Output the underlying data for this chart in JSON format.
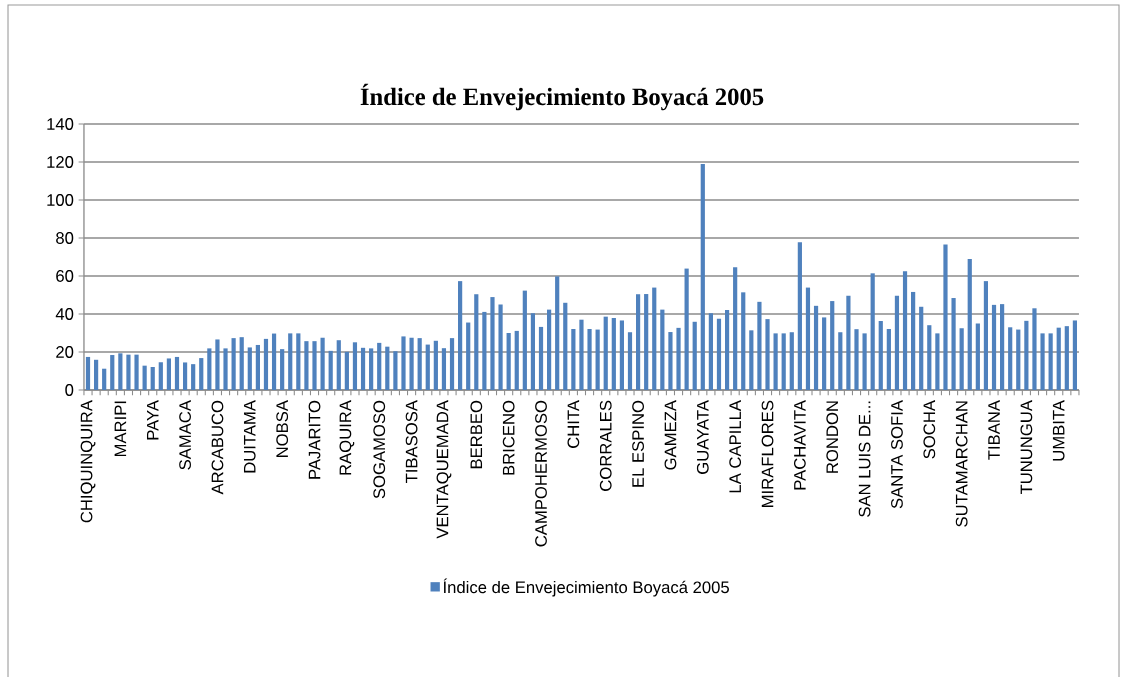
{
  "chart_data": {
    "type": "bar",
    "title": "Índice de Envejecimiento Boyacá 2005",
    "categories": [
      "CHIQUINQUIRA",
      null,
      null,
      null,
      "MARIPI",
      null,
      null,
      null,
      "PAYA",
      null,
      null,
      null,
      "SAMACA",
      null,
      null,
      null,
      "ARCABUCO",
      null,
      null,
      null,
      "DUITAMA",
      null,
      null,
      null,
      "NOBSA",
      null,
      null,
      null,
      "PAJARITO",
      null,
      null,
      null,
      "RAQUIRA",
      null,
      null,
      null,
      "SOGAMOSO",
      null,
      null,
      null,
      "TIBASOSA",
      null,
      null,
      null,
      "VENTAQUEMADA",
      null,
      null,
      null,
      "BERBEO",
      null,
      null,
      null,
      "BRICENO",
      null,
      null,
      null,
      "CAMPOHERMOSO",
      null,
      null,
      null,
      "CHITA",
      null,
      null,
      null,
      "CORRALES",
      null,
      null,
      null,
      "EL ESPINO",
      null,
      null,
      null,
      "GAMEZA",
      null,
      null,
      null,
      "GUAYATA",
      null,
      null,
      null,
      "LA CAPILLA",
      null,
      null,
      null,
      "MIRAFLORES",
      null,
      null,
      null,
      "PACHAVITA",
      null,
      null,
      null,
      "RONDON",
      null,
      null,
      null,
      "SAN LUIS DE...",
      null,
      null,
      null,
      "SANTA SOFIA",
      null,
      null,
      null,
      "SOCHA",
      null,
      null,
      null,
      "SUTAMARCHAN",
      null,
      null,
      null,
      "TIBANA",
      null,
      null,
      null,
      "TUNUNGUA",
      null,
      null,
      null,
      "UMBITA",
      null,
      null
    ],
    "series": [
      {
        "name": "Índice de Envejecimiento Boyacá 2005",
        "color": "#4f81bd",
        "values": [
          17.4,
          15.9,
          11.2,
          18.4,
          19.3,
          18.6,
          18.6,
          12.8,
          12.1,
          14.6,
          16.6,
          17.4,
          14.5,
          13.6,
          16.8,
          21.9,
          26.6,
          21.9,
          27.3,
          27.8,
          22.4,
          23.7,
          26.9,
          29.7,
          21.5,
          29.8,
          29.8,
          25.7,
          25.7,
          27.5,
          20.6,
          26.2,
          20.1,
          25.1,
          22.2,
          21.9,
          24.8,
          22.8,
          20.4,
          28.2,
          27.5,
          27.3,
          23.9,
          25.9,
          22.0,
          27.3,
          57.3,
          35.5,
          50.4,
          41.1,
          48.9,
          45.0,
          30.0,
          31.1,
          52.3,
          40.4,
          33.2,
          42.3,
          59.8,
          45.9,
          32.1,
          37.0,
          32.1,
          31.8,
          38.6,
          37.9,
          36.6,
          30.4,
          50.4,
          50.5,
          53.9,
          42.3,
          30.5,
          32.7,
          63.9,
          35.9,
          119,
          40.4,
          37.5,
          42.1,
          64.6,
          51.4,
          31.4,
          46.4,
          37.3,
          29.8,
          29.8,
          30.4,
          77.7,
          53.9,
          44.3,
          38.2,
          46.8,
          30.4,
          49.6,
          32.0,
          29.8,
          61.4,
          36.3,
          32.1,
          49.6,
          62.5,
          51.6,
          43.8,
          34.1,
          29.8,
          76.6,
          48.4,
          32.5,
          68.9,
          35.0,
          57.3,
          44.8,
          45.2,
          33.0,
          31.8,
          36.4,
          43.0,
          29.8,
          29.8,
          32.8,
          33.6,
          36.6
        ]
      }
    ],
    "ylim": [
      0,
      140
    ],
    "yticks": [
      0,
      20,
      40,
      60,
      80,
      100,
      120,
      140
    ],
    "grid": "y",
    "legend": "bottom"
  }
}
